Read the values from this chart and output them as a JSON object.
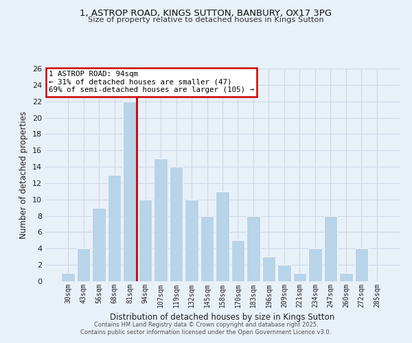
{
  "title": "1, ASTROP ROAD, KINGS SUTTON, BANBURY, OX17 3PG",
  "subtitle": "Size of property relative to detached houses in Kings Sutton",
  "xlabel": "Distribution of detached houses by size in Kings Sutton",
  "ylabel": "Number of detached properties",
  "categories": [
    "30sqm",
    "43sqm",
    "56sqm",
    "68sqm",
    "81sqm",
    "94sqm",
    "107sqm",
    "119sqm",
    "132sqm",
    "145sqm",
    "158sqm",
    "170sqm",
    "183sqm",
    "196sqm",
    "209sqm",
    "221sqm",
    "234sqm",
    "247sqm",
    "260sqm",
    "272sqm",
    "285sqm"
  ],
  "values": [
    1,
    4,
    9,
    13,
    22,
    10,
    15,
    14,
    10,
    8,
    11,
    5,
    8,
    3,
    2,
    1,
    4,
    8,
    1,
    4,
    0
  ],
  "bar_color": "#b8d4e8",
  "bar_edgecolor": "#ffffff",
  "highlight_line_color": "#cc0000",
  "highlight_bar_index": 4,
  "ylim": [
    0,
    26
  ],
  "yticks": [
    0,
    2,
    4,
    6,
    8,
    10,
    12,
    14,
    16,
    18,
    20,
    22,
    24,
    26
  ],
  "annotation_title": "1 ASTROP ROAD: 94sqm",
  "annotation_line1": "← 31% of detached houses are smaller (47)",
  "annotation_line2": "69% of semi-detached houses are larger (105) →",
  "annotation_box_color": "#ffffff",
  "annotation_box_edgecolor": "#cc0000",
  "grid_color": "#ccd9e8",
  "bg_color": "#e8f0f8",
  "footnote1": "Contains HM Land Registry data © Crown copyright and database right 2025.",
  "footnote2": "Contains public sector information licensed under the Open Government Licence v3.0."
}
